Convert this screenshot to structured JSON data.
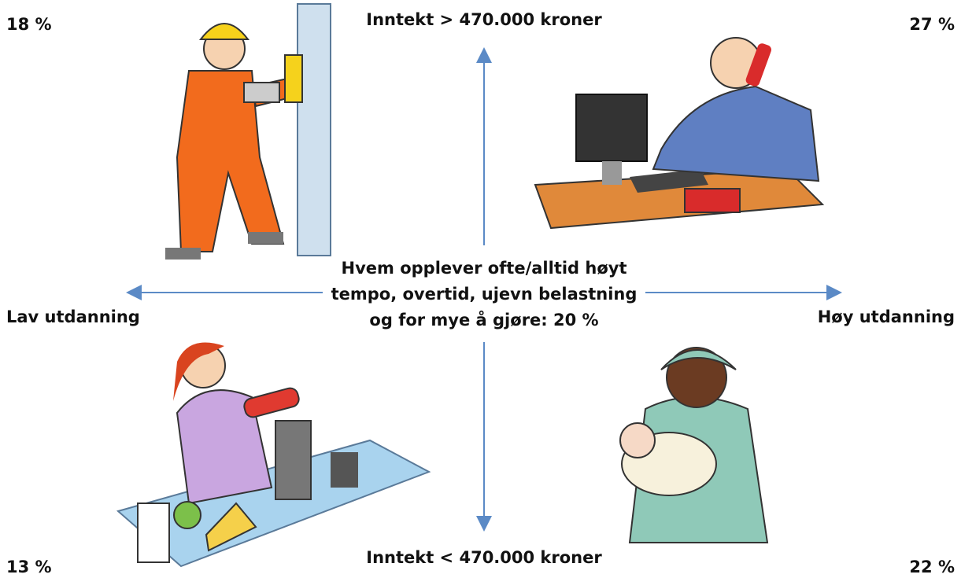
{
  "corners": {
    "top_left": "18 %",
    "top_right": "27 %",
    "bottom_left": "13 %",
    "bottom_right": "22 %"
  },
  "axes": {
    "top": "Inntekt > 470.000 kroner",
    "bottom": "Inntekt < 470.000 kroner",
    "left": "Lav utdanning",
    "right": "Høy utdanning"
  },
  "center": {
    "lines": [
      "Hvem opplever ofte/alltid høyt",
      "tempo, overtid, ujevn belastning",
      "og for mye å gjøre: 20 %"
    ]
  }
}
